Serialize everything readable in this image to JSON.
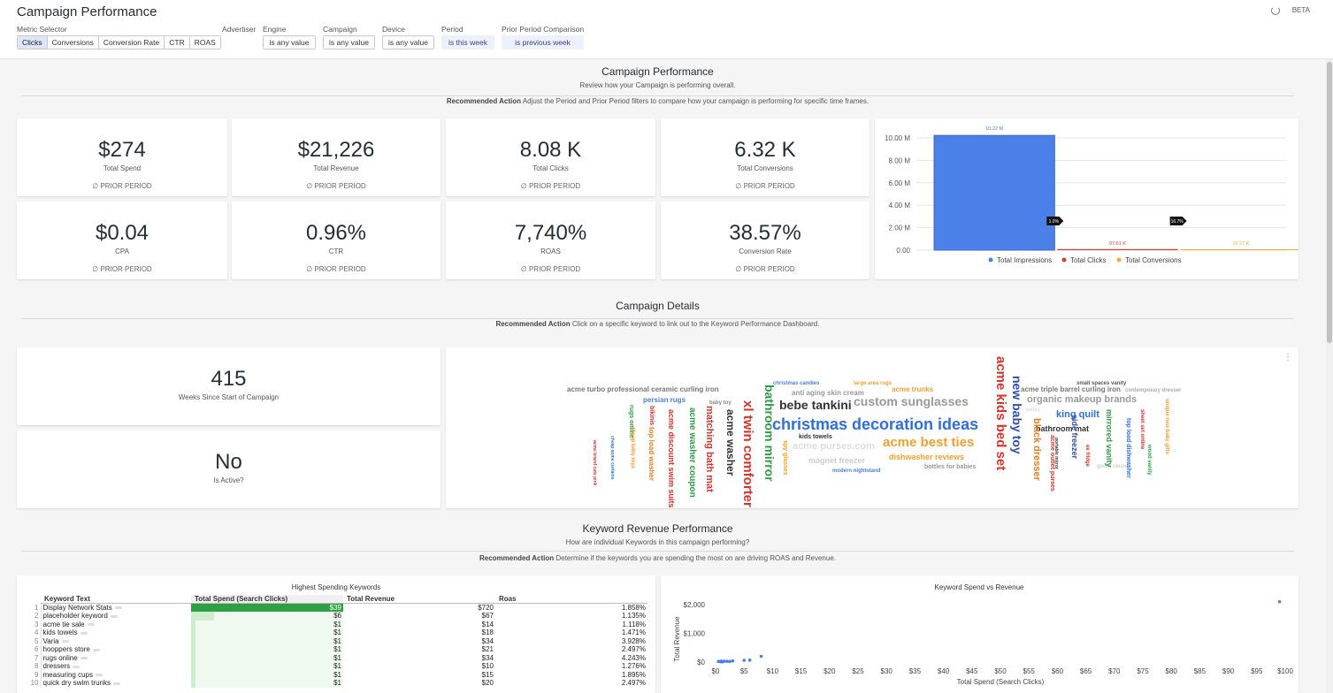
{
  "header": {
    "title": "Campaign Performance",
    "beta": "BETA",
    "metric_selector_label": "Metric Selector",
    "metrics": [
      "Clicks",
      "Conversions",
      "Conversion Rate",
      "CTR",
      "ROAS"
    ],
    "active_metric": "Clicks",
    "filters": [
      {
        "label": "Advertiser",
        "value": ""
      },
      {
        "label": "Engine",
        "value": "is any value"
      },
      {
        "label": "Campaign",
        "value": "is any value"
      },
      {
        "label": "Device",
        "value": "is any value"
      },
      {
        "label": "Period",
        "value": "is this week"
      },
      {
        "label": "Prior Period Comparison",
        "value": "is previous week"
      }
    ]
  },
  "performance": {
    "title": "Campaign Performance",
    "subtitle": "Review how your Campaign is performing overall.",
    "rec_label": "Recommended Action",
    "rec_text": " Adjust the Period and Prior Period filters to compare how your campaign is performing for specific time frames.",
    "kpis": [
      {
        "value": "$274",
        "label": "Total Spend",
        "prior": "∅ PRIOR PERIOD"
      },
      {
        "value": "$21,226",
        "label": "Total Revenue",
        "prior": "∅ PRIOR PERIOD"
      },
      {
        "value": "8.08 K",
        "label": "Total Clicks",
        "prior": "∅ PRIOR PERIOD"
      },
      {
        "value": "6.32 K",
        "label": "Total Conversions",
        "prior": "∅ PRIOR PERIOD"
      },
      {
        "value": "$0.04",
        "label": "CPA",
        "prior": "∅ PRIOR PERIOD"
      },
      {
        "value": "0.96%",
        "label": "CTR",
        "prior": "∅ PRIOR PERIOD"
      },
      {
        "value": "7,740%",
        "label": "ROAS",
        "prior": "∅ PRIOR PERIOD"
      },
      {
        "value": "38.57%",
        "label": "Conversion Rate",
        "prior": "∅ PRIOR PERIOD"
      }
    ]
  },
  "funnel_labels": {
    "top": "10.22 M",
    "mid": "97.61 K",
    "bot": "16.27 K",
    "r1": "1.0%",
    "r2": "16.7%"
  },
  "details": {
    "title": "Campaign Details",
    "rec_label": "Recommended Action",
    "rec_text": " Click on a specific keyword to link out to the Keyword Performance Dashboard.",
    "weeks_value": "415",
    "weeks_label": "Weeks Since Start of Campaign",
    "active_value": "No",
    "active_label": "Is Active?",
    "menu": "⋮"
  },
  "cloud": [
    {
      "t": "acme turbo professional ceramic curling iron",
      "c": "#777"
    },
    {
      "t": "persian rugs",
      "c": "#4a7fd8"
    },
    {
      "t": "baby toy",
      "c": "#888"
    },
    {
      "t": "christmas candles",
      "c": "#4a7fd8"
    },
    {
      "t": "large area rugs",
      "c": "#f0a030"
    },
    {
      "t": "anti aging skin cream",
      "c": "#999"
    },
    {
      "t": "acme trunks",
      "c": "#f0a030"
    },
    {
      "t": "bebe tankini",
      "c": "#333"
    },
    {
      "t": "custom sunglasses",
      "c": "#999"
    },
    {
      "t": "christmas decoration ideas",
      "c": "#2f6fdc"
    },
    {
      "t": "kids towels",
      "c": "#333"
    },
    {
      "t": "acme purses.com",
      "c": "#ddd"
    },
    {
      "t": "acme best ties",
      "c": "#f0a030"
    },
    {
      "t": "magnet freezer",
      "c": "#ccc"
    },
    {
      "t": "dishwasher reviews",
      "c": "#f0a030"
    },
    {
      "t": "modern nightstand",
      "c": "#4a7fd8"
    },
    {
      "t": "bottles for babies",
      "c": "#999"
    },
    {
      "t": "small spaces vanity",
      "c": "#555"
    },
    {
      "t": "acme triple barrel curling iron",
      "c": "#777"
    },
    {
      "t": "contemporary dresser",
      "c": "#aaa"
    },
    {
      "t": "organic makeup brands",
      "c": "#999"
    },
    {
      "t": "king quilt",
      "c": "#2f6fdc"
    },
    {
      "t": "bathroom mat",
      "c": "#333"
    },
    {
      "t": "ladies",
      "c": "#ddd"
    },
    {
      "t": "green cleaner",
      "c": "#ccc"
    },
    {
      "t": "acme kids bed set",
      "c": "#d9312b"
    },
    {
      "t": "new baby toy",
      "c": "#2f4fa8"
    },
    {
      "t": "black dresser",
      "c": "#e87d22"
    },
    {
      "t": "xl twin comforter",
      "c": "#d9312b"
    },
    {
      "t": "bathroom mirror",
      "c": "#2e9a45"
    },
    {
      "t": "acme washer",
      "c": "#333"
    },
    {
      "t": "matching bath mat",
      "c": "#d9312b"
    },
    {
      "t": "acme washer coupon",
      "c": "#2e9a45"
    },
    {
      "t": "acme discount swim suits",
      "c": "#d9312b"
    },
    {
      "t": "spy glasses",
      "c": "#f0a030"
    },
    {
      "t": "top load washer",
      "c": "#e87d22"
    },
    {
      "t": "rugs online",
      "c": "#2e9a45"
    },
    {
      "t": "bikinis",
      "c": "#d9312b"
    },
    {
      "t": "cheap baby toys",
      "c": "#f0a030"
    },
    {
      "t": "cheap acme curtains",
      "c": "#2f6fdc"
    },
    {
      "t": "acme brand cute pink",
      "c": "#d9312b"
    },
    {
      "t": "side freezer",
      "c": "#2f4fa8"
    },
    {
      "t": "portable mirror",
      "c": "#333"
    },
    {
      "t": "acme outlet purses",
      "c": "#d9312b"
    },
    {
      "t": "ee fridge",
      "c": "#d9312b"
    },
    {
      "t": "mirrored vanity",
      "c": "#2e9a45"
    },
    {
      "t": "top load dishwasher",
      "c": "#2f6fdc"
    },
    {
      "t": "sheet set online",
      "c": "#d9312b"
    },
    {
      "t": "wood vanity",
      "c": "#2e9a45"
    },
    {
      "t": "unique new baby gifts",
      "c": "#f0a030"
    }
  ],
  "keywords": {
    "title": "Keyword Revenue Performance",
    "subtitle": "How are individual Keywords in this campaign performing?",
    "rec_label": "Recommended Action",
    "rec_text": " Determine if the keywords you are spending the most on are driving ROAS and Revenue.",
    "table_title": "Highest Spending Keywords",
    "columns": [
      "Keyword Text",
      "Total Spend (Search Clicks)",
      "Total Revenue",
      "Roas"
    ],
    "rows": [
      {
        "n": "1",
        "k": "Display Network Stats",
        "s": "$39",
        "r": "$720",
        "o": "1.858%",
        "p": 1.0
      },
      {
        "n": "2",
        "k": "placeholder keyword",
        "s": "$6",
        "r": "$67",
        "o": "1.135%",
        "p": 0.15
      },
      {
        "n": "3",
        "k": "acme tie sale",
        "s": "$1",
        "r": "$14",
        "o": "1.118%",
        "p": 0.03
      },
      {
        "n": "4",
        "k": "kids towels",
        "s": "$1",
        "r": "$18",
        "o": "1.471%",
        "p": 0.03
      },
      {
        "n": "5",
        "k": "Varia",
        "s": "$1",
        "r": "$34",
        "o": "3.928%",
        "p": 0.03
      },
      {
        "n": "6",
        "k": "hooppers store",
        "s": "$1",
        "r": "$21",
        "o": "2.497%",
        "p": 0.03
      },
      {
        "n": "7",
        "k": "rugs online",
        "s": "$1",
        "r": "$34",
        "o": "4.243%",
        "p": 0.03
      },
      {
        "n": "8",
        "k": "dressers",
        "s": "$1",
        "r": "$10",
        "o": "1.276%",
        "p": 0.03
      },
      {
        "n": "9",
        "k": "measuring cups",
        "s": "$1",
        "r": "$15",
        "o": "1.895%",
        "p": 0.03
      },
      {
        "n": "10",
        "k": "quick dry swim trunks",
        "s": "$1",
        "r": "$20",
        "o": "2.497%",
        "p": 0.03
      }
    ]
  },
  "chart_data": [
    {
      "type": "bar",
      "categories": [
        "Total Impressions",
        "Total Clicks",
        "Total Conversions"
      ],
      "values": [
        10220000,
        97610,
        16270
      ],
      "data_labels": [
        "10.22 M",
        "97.61 K",
        "16.27 K"
      ],
      "ratio_labels": [
        "1.0%",
        "16.7%"
      ],
      "yticks": [
        "10.00 M",
        "8.00 M",
        "6.00 M",
        "4.00 M",
        "2.00 M",
        "0.00"
      ],
      "ylim": [
        0,
        10000000
      ],
      "legend": [
        "Total Impressions",
        "Total Clicks",
        "Total Conversions"
      ],
      "colors": [
        "#4b80e8",
        "#dc3b2f",
        "#f3a939"
      ]
    },
    {
      "type": "scatter",
      "title": "Keyword Spend vs Revenue",
      "xlabel": "Total Spend (Search Clicks)",
      "ylabel": "Total Revenue",
      "xticks": [
        "$0",
        "$5",
        "$10",
        "$15",
        "$20",
        "$25",
        "$30",
        "$35",
        "$40",
        "$45",
        "$50",
        "$55",
        "$60",
        "$65",
        "$70",
        "$75",
        "$80",
        "$85",
        "$90",
        "$95",
        "$100"
      ],
      "yticks": [
        "$2,000",
        "$1,000",
        "$0"
      ],
      "xlim": [
        0,
        100
      ],
      "ylim": [
        0,
        2000
      ],
      "points": [
        [
          0.5,
          20
        ],
        [
          0.8,
          15
        ],
        [
          1,
          14
        ],
        [
          1,
          18
        ],
        [
          1,
          21
        ],
        [
          1,
          34
        ],
        [
          1.2,
          10
        ],
        [
          1.5,
          30
        ],
        [
          2,
          25
        ],
        [
          2.5,
          20
        ],
        [
          3,
          40
        ],
        [
          5,
          60
        ],
        [
          6,
          67
        ],
        [
          8,
          200
        ],
        [
          99,
          2100
        ]
      ]
    }
  ]
}
